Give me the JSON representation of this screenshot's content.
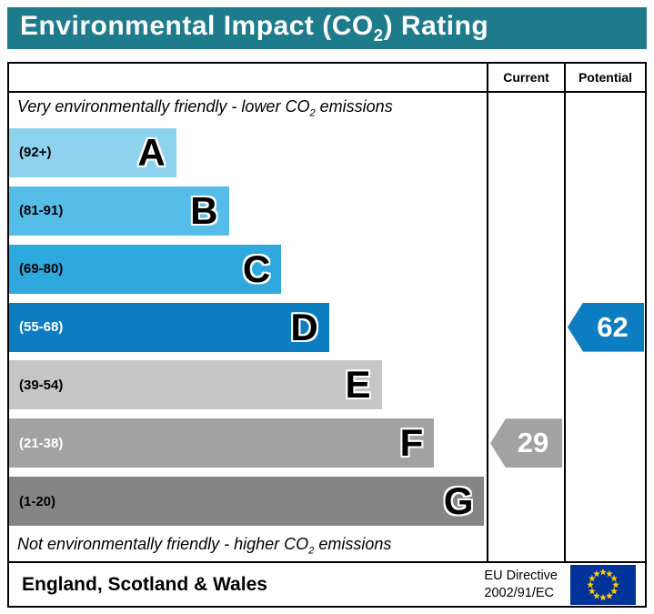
{
  "header": {
    "title_prefix": "Environmental Impact (CO",
    "title_sub": "2",
    "title_suffix": ") Rating"
  },
  "colors": {
    "banner": "#1d7b8c"
  },
  "columns": {
    "current": "Current",
    "potential": "Potential"
  },
  "captions": {
    "top_prefix": "Very environmentally friendly - lower CO",
    "top_sub": "2",
    "top_suffix": " emissions",
    "bottom_prefix": "Not environmentally friendly - higher CO",
    "bottom_sub": "2",
    "bottom_suffix": " emissions"
  },
  "chart_data": {
    "type": "bar",
    "title": "Environmental Impact (CO2) Rating",
    "bands": [
      {
        "letter": "A",
        "range": "(92+)",
        "color": "#8dd3ee",
        "width_pct": 35,
        "text_color": "#000000"
      },
      {
        "letter": "B",
        "range": "(81-91)",
        "color": "#56bde8",
        "width_pct": 46,
        "text_color": "#000000"
      },
      {
        "letter": "C",
        "range": "(69-80)",
        "color": "#2fa8de",
        "width_pct": 57,
        "text_color": "#000000"
      },
      {
        "letter": "D",
        "range": "(55-68)",
        "color": "#0d7dc1",
        "width_pct": 67,
        "text_color": "#ffffff"
      },
      {
        "letter": "E",
        "range": "(39-54)",
        "color": "#c6c6c6",
        "width_pct": 78,
        "text_color": "#000000"
      },
      {
        "letter": "F",
        "range": "(21-38)",
        "color": "#a2a2a2",
        "width_pct": 89,
        "text_color": "#ffffff"
      },
      {
        "letter": "G",
        "range": "(1-20)",
        "color": "#858585",
        "width_pct": 99.5,
        "text_color": "#000000"
      }
    ],
    "current": {
      "value": 29,
      "band_letter": "F",
      "band_index": 5,
      "color": "#a2a2a2"
    },
    "potential": {
      "value": 62,
      "band_letter": "D",
      "band_index": 3,
      "color": "#0d7dc1"
    }
  },
  "footer": {
    "region": "England, Scotland & Wales",
    "directive_line1": "EU Directive",
    "directive_line2": "2002/91/EC",
    "flag_colors": {
      "field": "#003399",
      "stars": "#ffcc00"
    }
  }
}
